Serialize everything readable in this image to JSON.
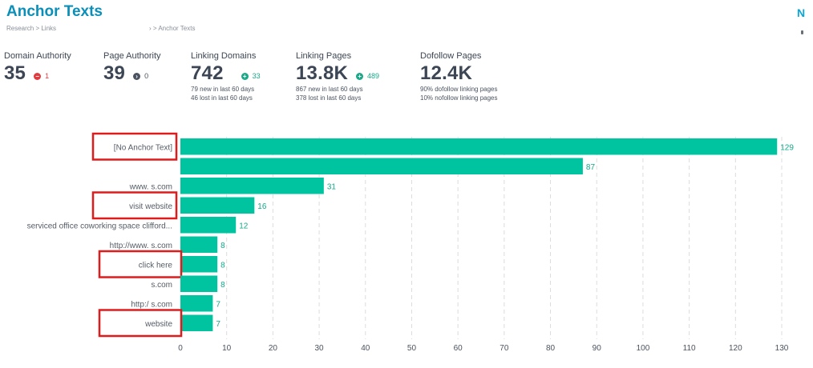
{
  "page": {
    "title": "Anchor Texts",
    "breadcrumb_left": "Research >  Links",
    "breadcrumb_right": "› >  Anchor Texts",
    "corner_letter": "N"
  },
  "metrics": [
    {
      "label": "Domain Authority",
      "value": "35",
      "delta": "1",
      "delta_kind": "red",
      "delta_icon": "minus-circle-icon",
      "notes": []
    },
    {
      "label": "Page Authority",
      "value": "39",
      "delta": "0",
      "delta_kind": "gray",
      "delta_icon": "arrow-right-circle-icon",
      "notes": []
    },
    {
      "label": "Linking Domains",
      "value": "742",
      "delta": "33",
      "delta_kind": "green",
      "delta_icon": "plus-circle-icon",
      "notes": [
        "79 new in last 60 days",
        "46 lost in last 60 days"
      ]
    },
    {
      "label": "Linking Pages",
      "value": "13.8K",
      "delta": "489",
      "delta_kind": "green",
      "delta_icon": "plus-circle-icon",
      "notes": [
        "867 new in last 60 days",
        "378 lost in last 60 days"
      ]
    },
    {
      "label": "Dofollow Pages",
      "value": "12.4K",
      "delta": "",
      "delta_kind": "none",
      "delta_icon": "",
      "notes": [
        "90% dofollow linking pages",
        "10% nofollow linking pages"
      ]
    }
  ],
  "colors": {
    "bar": "#00c4a0",
    "value_label": "#13a98a",
    "highlight_box": "#e01b1b",
    "grid": "#dcdcdc",
    "axis_text": "#4b5360",
    "category_text": "#555c66"
  },
  "chart_data": {
    "type": "bar",
    "orientation": "horizontal",
    "categories": [
      "[No Anchor Text]",
      "",
      "www.              s.com",
      "visit website",
      "serviced office coworking space clifford...",
      "http://www.             s.com",
      "click here",
      "s.com",
      "http:/               s.com",
      "website"
    ],
    "values": [
      129,
      87,
      31,
      16,
      12,
      8,
      8,
      8,
      7,
      7
    ],
    "highlighted": [
      true,
      false,
      false,
      true,
      false,
      false,
      true,
      false,
      false,
      true
    ],
    "xlim": [
      0,
      130
    ],
    "xticks": [
      0,
      10,
      20,
      30,
      40,
      50,
      60,
      70,
      80,
      90,
      100,
      110,
      120,
      130
    ],
    "grid": "vertical dashed",
    "title": "",
    "xlabel": "",
    "ylabel": ""
  }
}
